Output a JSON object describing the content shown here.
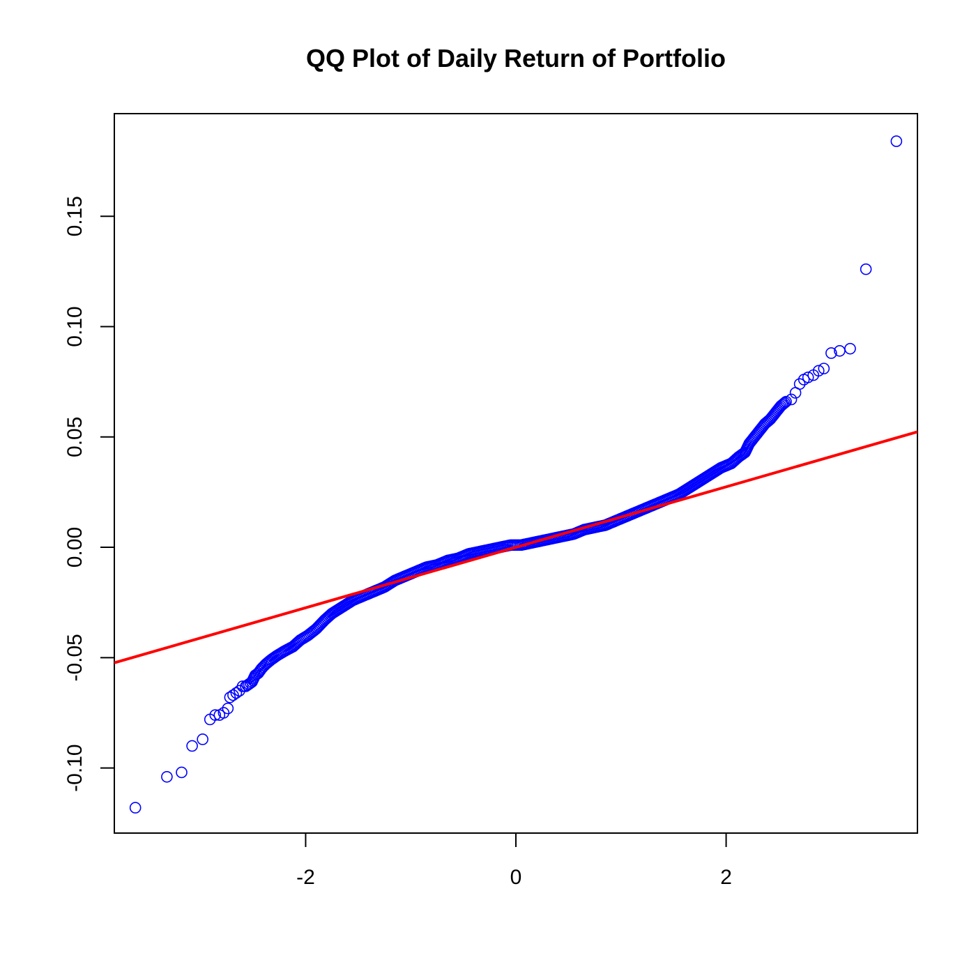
{
  "chart_data": {
    "type": "scatter",
    "title": "QQ Plot of Daily Return of Portfolio",
    "xlabel": "",
    "ylabel": "",
    "xlim": [
      -3.82,
      3.82
    ],
    "ylim": [
      -0.1295,
      0.1965
    ],
    "x_ticks": [
      {
        "value": -2,
        "label": "-2"
      },
      {
        "value": 0,
        "label": "0"
      },
      {
        "value": 2,
        "label": "2"
      }
    ],
    "y_ticks": [
      {
        "value": -0.1,
        "label": "-0.10"
      },
      {
        "value": -0.05,
        "label": "-0.05"
      },
      {
        "value": 0.0,
        "label": "0.00"
      },
      {
        "value": 0.05,
        "label": "0.05"
      },
      {
        "value": 0.1,
        "label": "0.10"
      },
      {
        "value": 0.15,
        "label": "0.15"
      }
    ],
    "grid": false,
    "series": [
      {
        "marker": "open-circle",
        "color": "#0000FF",
        "points": [
          [
            -3.62,
            -0.118
          ],
          [
            -3.32,
            -0.104
          ],
          [
            -3.18,
            -0.102
          ],
          [
            -3.08,
            -0.09
          ],
          [
            -2.98,
            -0.087
          ],
          [
            -2.91,
            -0.078
          ],
          [
            -2.86,
            -0.076
          ],
          [
            -2.82,
            -0.076
          ],
          [
            -2.78,
            -0.075
          ],
          [
            -2.74,
            -0.073
          ],
          [
            -2.72,
            -0.068
          ],
          [
            -2.69,
            -0.067
          ],
          [
            -2.66,
            -0.066
          ],
          [
            -2.63,
            -0.065
          ],
          [
            -2.6,
            -0.063
          ],
          [
            -2.57,
            -0.063
          ],
          [
            -2.54,
            -0.062
          ],
          [
            -2.51,
            -0.061
          ],
          [
            -2.48,
            -0.058
          ],
          [
            -2.45,
            -0.057
          ],
          [
            -2.42,
            -0.055
          ],
          [
            -2.38,
            -0.053
          ],
          [
            -2.33,
            -0.051
          ],
          [
            -2.27,
            -0.049
          ],
          [
            -2.2,
            -0.047
          ],
          [
            -2.12,
            -0.045
          ],
          [
            -2.05,
            -0.042
          ],
          [
            -1.98,
            -0.04
          ],
          [
            -1.9,
            -0.037
          ],
          [
            -1.82,
            -0.033
          ],
          [
            -1.75,
            -0.03
          ],
          [
            -1.65,
            -0.027
          ],
          [
            -1.55,
            -0.024
          ],
          [
            -1.45,
            -0.022
          ],
          [
            -1.35,
            -0.02
          ],
          [
            -1.25,
            -0.018
          ],
          [
            -1.15,
            -0.015
          ],
          [
            -1.05,
            -0.013
          ],
          [
            -0.95,
            -0.011
          ],
          [
            -0.85,
            -0.009
          ],
          [
            -0.75,
            -0.008
          ],
          [
            -0.65,
            -0.006
          ],
          [
            -0.55,
            -0.005
          ],
          [
            -0.45,
            -0.003
          ],
          [
            -0.35,
            -0.002
          ],
          [
            -0.25,
            -0.001
          ],
          [
            -0.15,
            0.0
          ],
          [
            -0.05,
            0.001
          ],
          [
            0.05,
            0.001
          ],
          [
            0.15,
            0.002
          ],
          [
            0.25,
            0.003
          ],
          [
            0.35,
            0.004
          ],
          [
            0.45,
            0.005
          ],
          [
            0.55,
            0.006
          ],
          [
            0.65,
            0.008
          ],
          [
            0.75,
            0.009
          ],
          [
            0.85,
            0.01
          ],
          [
            0.95,
            0.012
          ],
          [
            1.05,
            0.014
          ],
          [
            1.15,
            0.016
          ],
          [
            1.25,
            0.018
          ],
          [
            1.35,
            0.02
          ],
          [
            1.45,
            0.022
          ],
          [
            1.55,
            0.024
          ],
          [
            1.65,
            0.027
          ],
          [
            1.75,
            0.03
          ],
          [
            1.85,
            0.033
          ],
          [
            1.95,
            0.036
          ],
          [
            2.05,
            0.038
          ],
          [
            2.12,
            0.041
          ],
          [
            2.18,
            0.043
          ],
          [
            2.22,
            0.047
          ],
          [
            2.27,
            0.05
          ],
          [
            2.32,
            0.053
          ],
          [
            2.37,
            0.056
          ],
          [
            2.42,
            0.058
          ],
          [
            2.47,
            0.061
          ],
          [
            2.52,
            0.064
          ],
          [
            2.57,
            0.066
          ],
          [
            2.62,
            0.067
          ],
          [
            2.66,
            0.07
          ],
          [
            2.7,
            0.074
          ],
          [
            2.74,
            0.076
          ],
          [
            2.78,
            0.077
          ],
          [
            2.83,
            0.078
          ],
          [
            2.88,
            0.08
          ],
          [
            2.93,
            0.081
          ],
          [
            3.0,
            0.088
          ],
          [
            3.08,
            0.089
          ],
          [
            3.18,
            0.09
          ],
          [
            3.33,
            0.126
          ],
          [
            3.62,
            0.184
          ]
        ]
      },
      {
        "type": "reference-line",
        "color": "#FF0000",
        "intercept": 0.0,
        "slope": 0.0137
      }
    ]
  }
}
